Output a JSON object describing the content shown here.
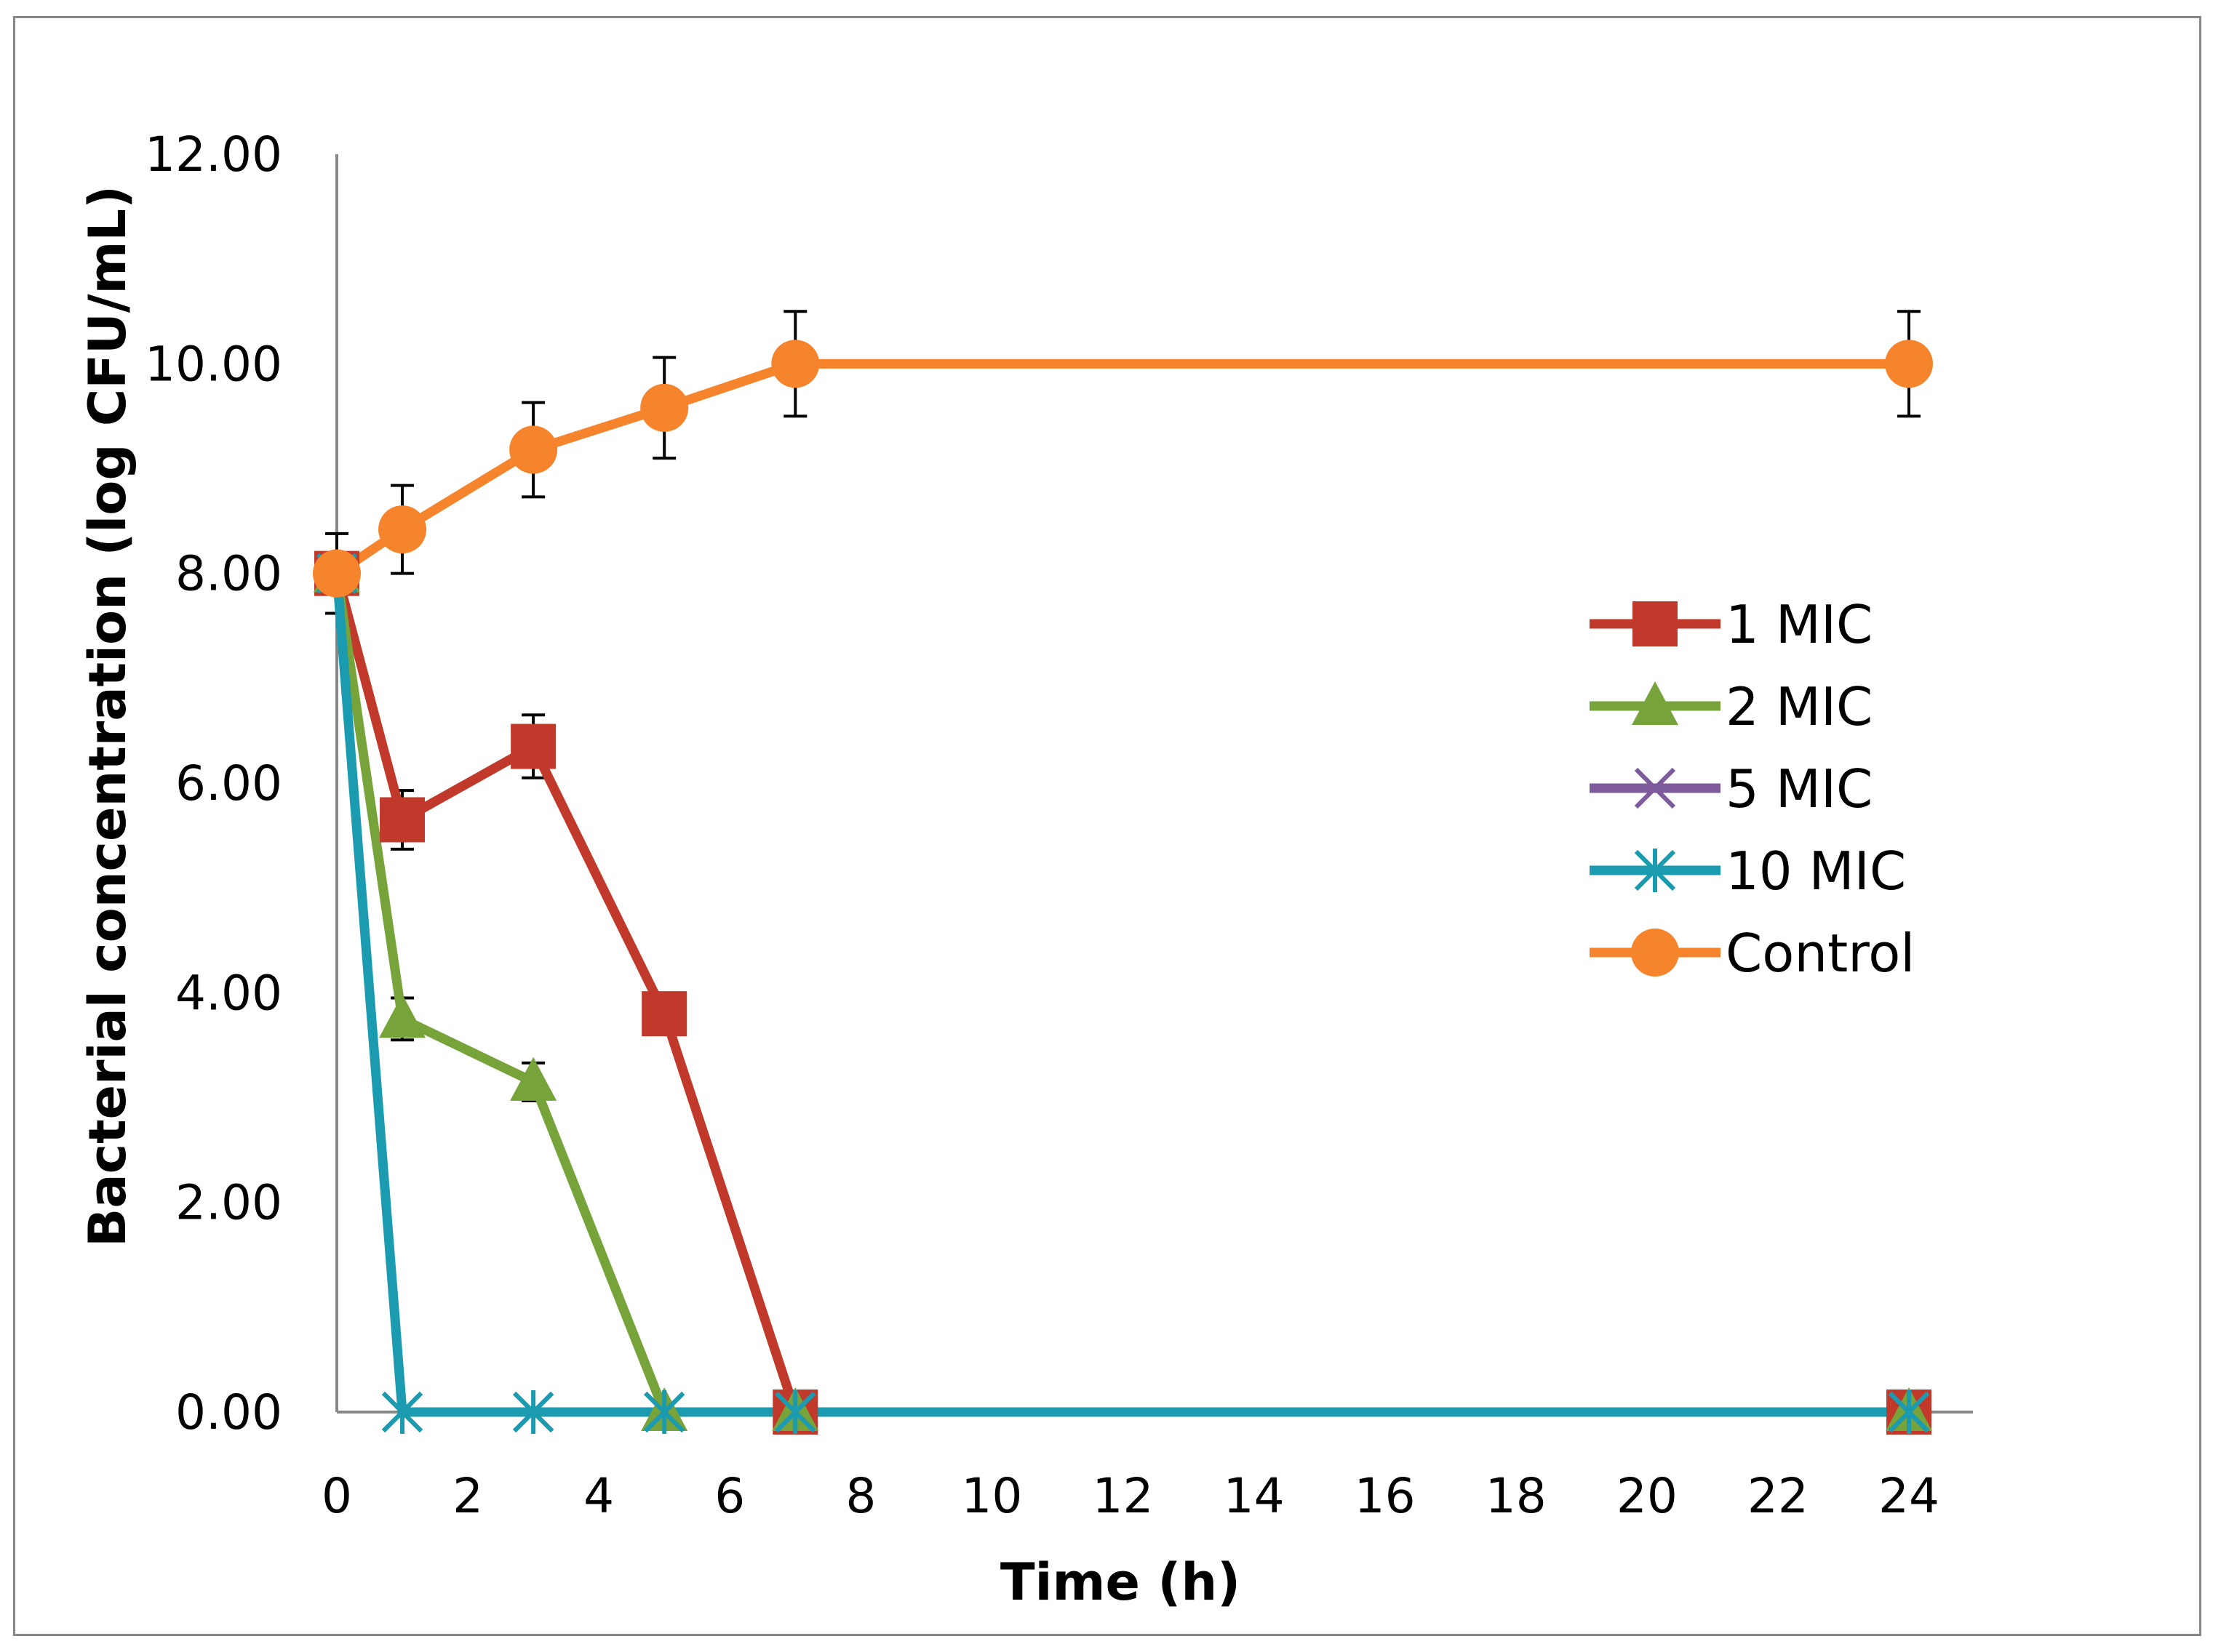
{
  "chart_data": {
    "type": "line",
    "title": "",
    "xlabel": "Time (h)",
    "ylabel": "Bacterial concentration (log CFU/mL)",
    "xlim": [
      0,
      24
    ],
    "ylim": [
      0,
      12
    ],
    "x_ticks": [
      "0",
      "2",
      "4",
      "6",
      "8",
      "10",
      "12",
      "14",
      "16",
      "18",
      "20",
      "22",
      "24"
    ],
    "y_ticks": [
      "0.00",
      "2.00",
      "4.00",
      "6.00",
      "8.00",
      "10.00",
      "12.00"
    ],
    "grid": false,
    "legend_position": "right",
    "series": [
      {
        "name": "1 MIC",
        "color": "#C0392B",
        "marker": "square",
        "x": [
          0,
          1,
          3,
          5,
          7,
          24
        ],
        "values": [
          8.0,
          5.65,
          6.35,
          3.8,
          0,
          0
        ],
        "errors": [
          0,
          0.28,
          0.3,
          0,
          0,
          0
        ]
      },
      {
        "name": "2 MIC",
        "color": "#76A33A",
        "marker": "triangle",
        "x": [
          0,
          1,
          3,
          5,
          7,
          24
        ],
        "values": [
          8.0,
          3.75,
          3.15,
          0,
          0,
          0
        ],
        "errors": [
          0,
          0.2,
          0.18,
          0,
          0,
          0
        ]
      },
      {
        "name": "5 MIC",
        "color": "#7D5A9B",
        "marker": "x",
        "x": [
          0,
          1,
          3,
          5,
          7,
          24
        ],
        "values": [
          8.0,
          0,
          0,
          0,
          0,
          0
        ],
        "errors": [
          0,
          0,
          0,
          0,
          0,
          0
        ]
      },
      {
        "name": "10 MIC",
        "color": "#1A9BB0",
        "marker": "star",
        "x": [
          0,
          1,
          3,
          5,
          7,
          24
        ],
        "values": [
          8.0,
          0,
          0,
          0,
          0,
          0
        ],
        "errors": [
          0,
          0,
          0,
          0,
          0,
          0
        ]
      },
      {
        "name": "Control",
        "color": "#F5842D",
        "marker": "circle",
        "x": [
          0,
          1,
          3,
          5,
          7,
          24
        ],
        "values": [
          8.0,
          8.42,
          9.18,
          9.58,
          10.0,
          10.0
        ],
        "errors": [
          0.38,
          0.42,
          0.45,
          0.48,
          0.5,
          0.5
        ]
      }
    ]
  }
}
